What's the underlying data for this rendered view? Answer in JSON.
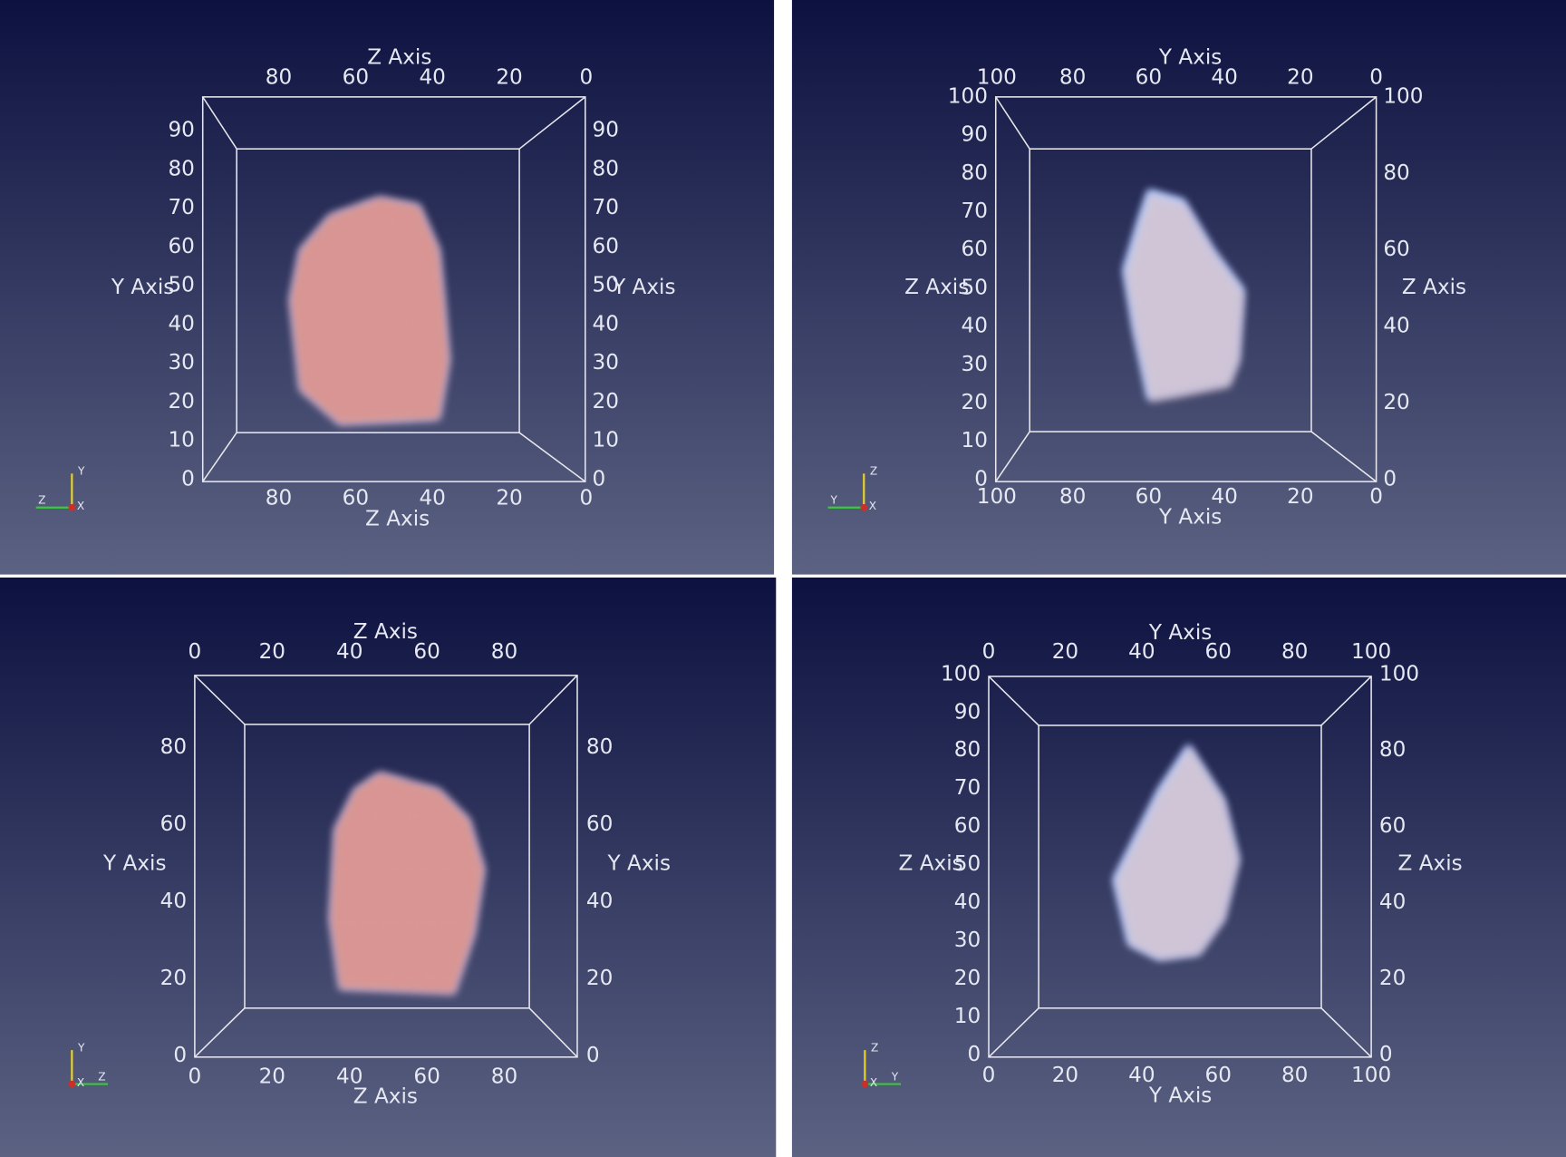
{
  "panels": [
    {
      "top_axis": {
        "title": "Z Axis",
        "ticks": [
          80,
          60,
          40,
          20,
          0
        ]
      },
      "bottom_axis": {
        "title": "Z Axis",
        "ticks": [
          80,
          60,
          40,
          20,
          0
        ]
      },
      "left_axis": {
        "title": "Y Axis",
        "ticks": [
          0,
          10,
          20,
          30,
          40,
          50,
          60,
          70,
          80,
          90
        ]
      },
      "right_axis": {
        "title": "Y Axis",
        "ticks": [
          0,
          10,
          20,
          30,
          40,
          50,
          60,
          70,
          80,
          90
        ]
      },
      "orientation": {
        "up": "Y",
        "arm": "Z",
        "origin": "X"
      }
    },
    {
      "top_axis": {
        "title": "Y Axis",
        "ticks": [
          100,
          80,
          60,
          40,
          20,
          0
        ]
      },
      "bottom_axis": {
        "title": "Y Axis",
        "ticks": [
          100,
          80,
          60,
          40,
          20,
          0
        ]
      },
      "left_axis": {
        "title": "Z Axis",
        "ticks": [
          0,
          10,
          20,
          30,
          40,
          50,
          60,
          70,
          80,
          90,
          100
        ]
      },
      "right_axis": {
        "title": "Z Axis",
        "ticks": [
          0,
          20,
          40,
          60,
          80,
          100
        ]
      },
      "orientation": {
        "up": "Z",
        "arm": "Y",
        "origin": "X"
      }
    },
    {
      "top_axis": {
        "title": "Z Axis",
        "ticks": [
          0,
          20,
          40,
          60,
          80
        ]
      },
      "bottom_axis": {
        "title": "Z Axis",
        "ticks": [
          0,
          20,
          40,
          60,
          80
        ]
      },
      "left_axis": {
        "title": "Y Axis",
        "ticks": [
          0,
          20,
          40,
          60,
          80
        ]
      },
      "right_axis": {
        "title": "Y Axis",
        "ticks": [
          0,
          20,
          40,
          60,
          80
        ]
      },
      "orientation": {
        "up": "Y",
        "arm": "Z",
        "origin": "X"
      }
    },
    {
      "top_axis": {
        "title": "Y Axis",
        "ticks": [
          0,
          20,
          40,
          60,
          80,
          100
        ]
      },
      "bottom_axis": {
        "title": "Y Axis",
        "ticks": [
          0,
          20,
          40,
          60,
          80,
          100
        ]
      },
      "left_axis": {
        "title": "Z Axis",
        "ticks": [
          0,
          10,
          20,
          30,
          40,
          50,
          60,
          70,
          80,
          90,
          100
        ]
      },
      "right_axis": {
        "title": "Z Axis",
        "ticks": [
          0,
          20,
          40,
          60,
          80,
          100
        ]
      },
      "orientation": {
        "up": "Z",
        "arm": "Y",
        "origin": "X"
      }
    }
  ]
}
